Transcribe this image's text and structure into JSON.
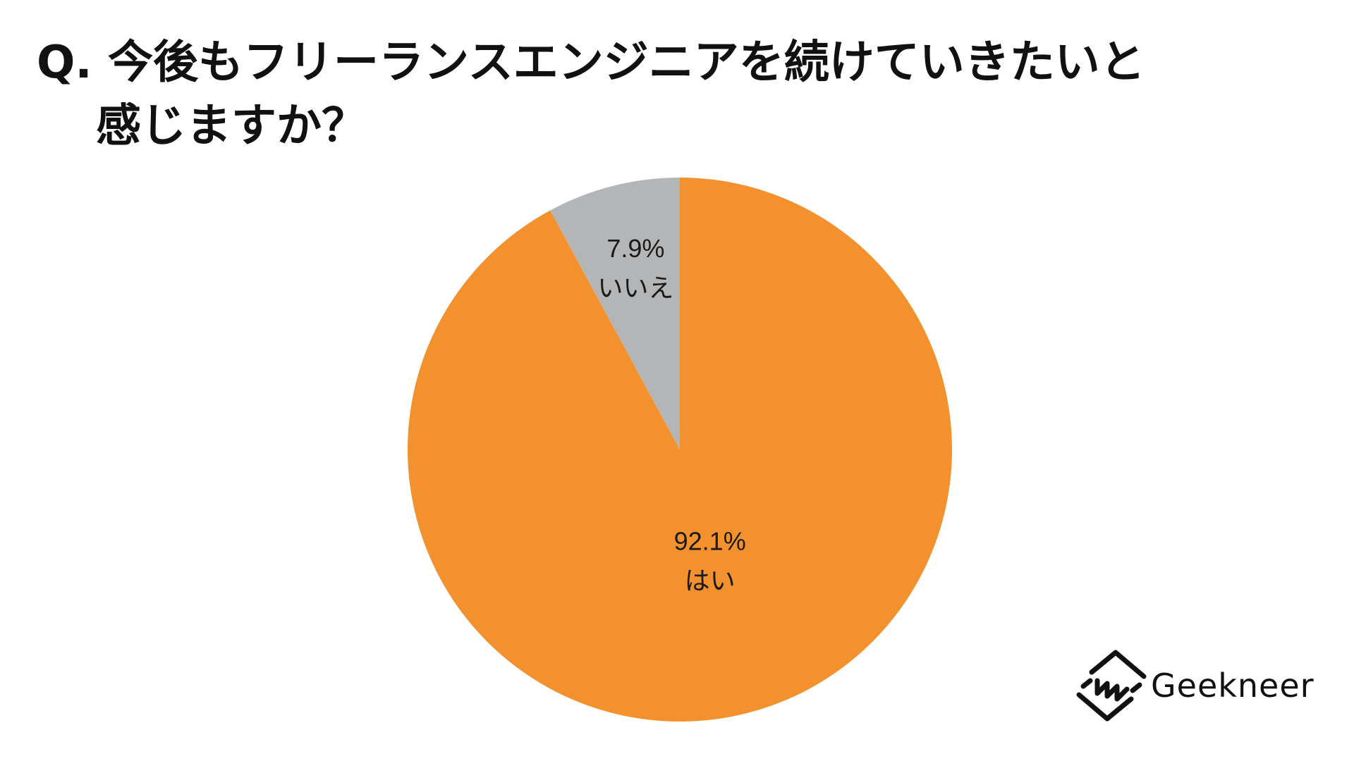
{
  "title": {
    "line1": "Q. 今後もフリーランスエンジニアを続けていきたいと",
    "line2": "感じますか？"
  },
  "chart_data": {
    "type": "pie",
    "start_angle": "12 o'clock",
    "direction": "clockwise",
    "slices": [
      {
        "label": "はい",
        "value": 92.1,
        "value_label": "92.1%",
        "color": "#F2912E"
      },
      {
        "label": "いいえ",
        "value": 7.9,
        "value_label": "7.9%",
        "color": "#B3B5B7"
      }
    ]
  },
  "logo": {
    "text": "Geekneer",
    "icon": "geekneer-logo-icon"
  }
}
